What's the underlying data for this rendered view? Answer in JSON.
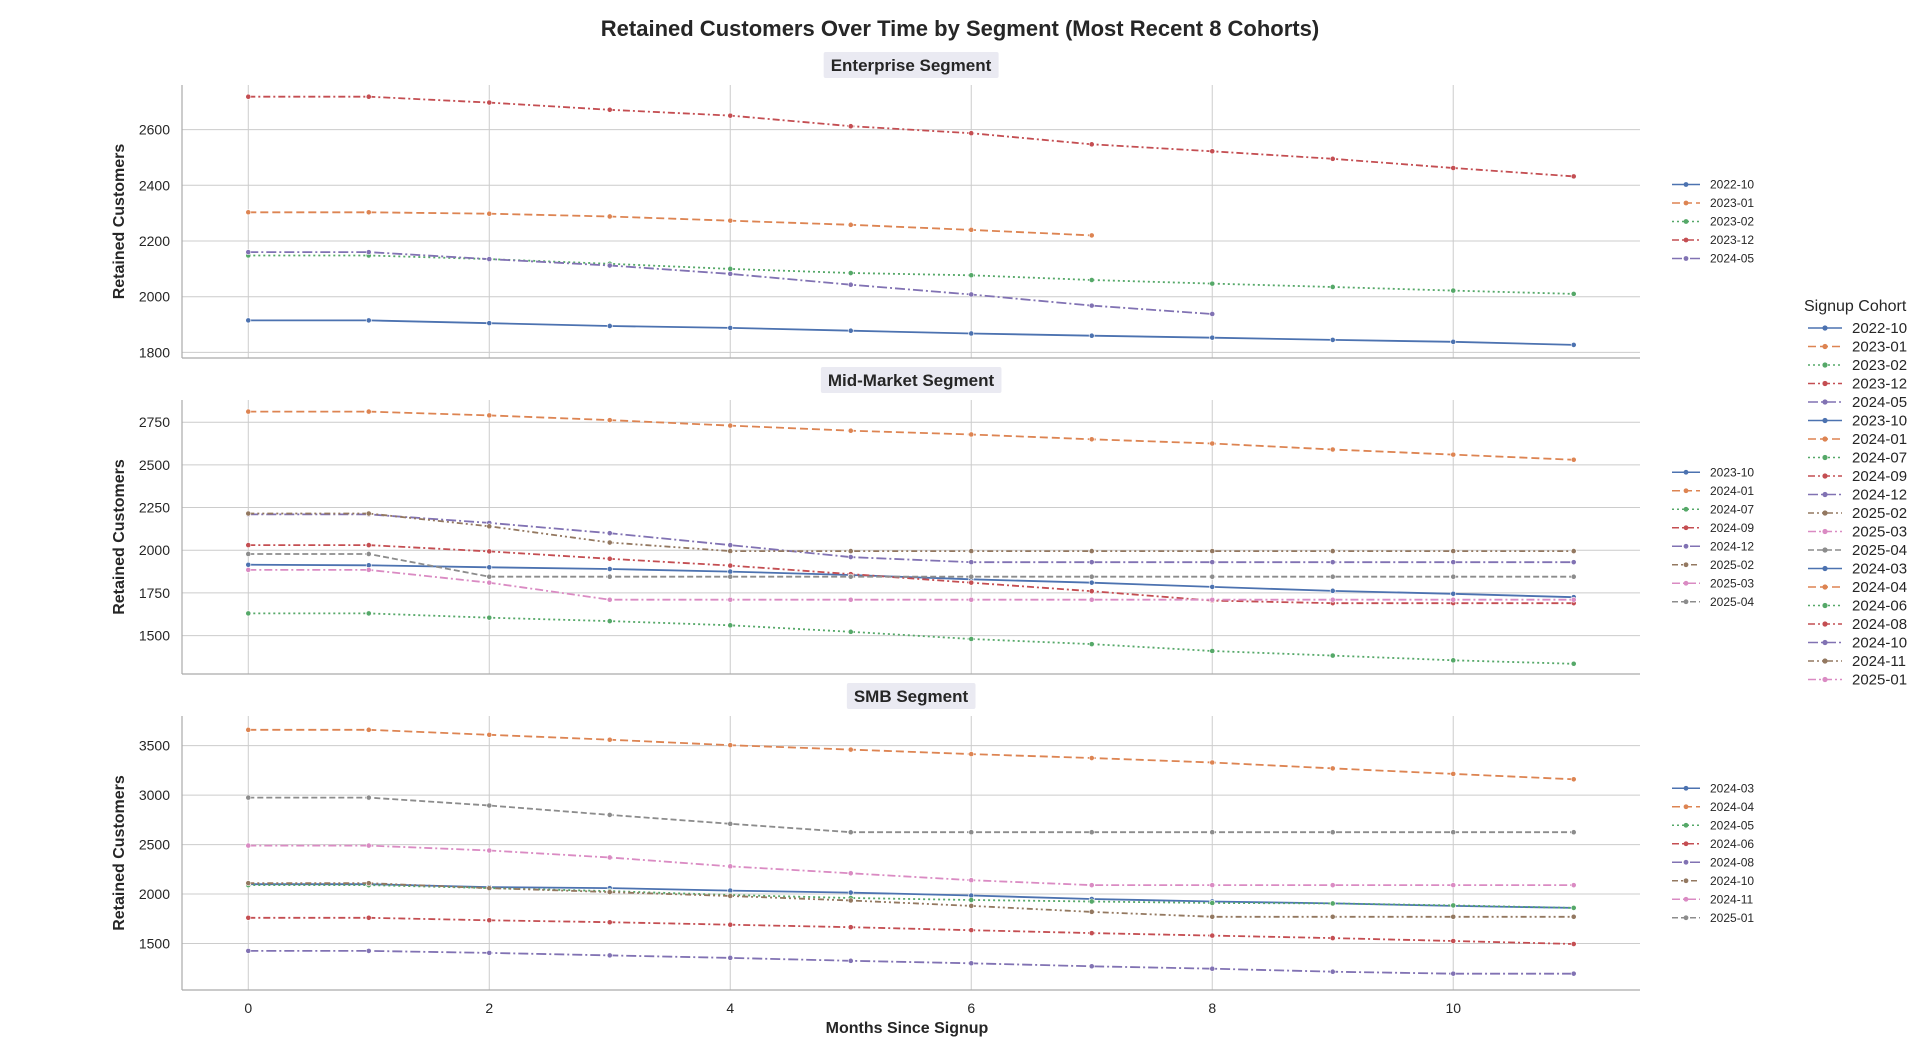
{
  "title": "Retained Customers Over Time by Segment (Most Recent 8 Cohorts)",
  "xlabel": "Months Since Signup",
  "legend_title": "Signup Cohort",
  "colors": [
    "#4c72b0",
    "#dd8452",
    "#55a868",
    "#c44e52",
    "#8172b3",
    "#937860",
    "#da8bc3",
    "#8c8c8c"
  ],
  "global_legend": [
    "2022-10",
    "2023-01",
    "2023-02",
    "2023-12",
    "2024-05",
    "2023-10",
    "2024-01",
    "2024-07",
    "2024-09",
    "2024-12",
    "2025-02",
    "2025-03",
    "2025-04",
    "2024-03",
    "2024-04",
    "2024-06",
    "2024-08",
    "2024-10",
    "2024-11",
    "2025-01"
  ],
  "chart_data": [
    {
      "type": "line",
      "title": "Enterprise Segment",
      "xlabel": "Months Since Signup",
      "ylabel": "Retained Customers",
      "xlim": [
        -0.55,
        11.55
      ],
      "ylim": [
        1780,
        2760
      ],
      "xticks": [
        0,
        2,
        4,
        6,
        8,
        10
      ],
      "yticks": [
        1800,
        2000,
        2200,
        2400,
        2600
      ],
      "grid": true,
      "legend_position": "right",
      "series": [
        {
          "name": "2022-10",
          "x": [
            0,
            1,
            2,
            3,
            4,
            5,
            6,
            7,
            8,
            9,
            10,
            11
          ],
          "values": [
            1915,
            1915,
            1905,
            1895,
            1888,
            1878,
            1868,
            1860,
            1853,
            1845,
            1838,
            1827
          ]
        },
        {
          "name": "2023-01",
          "x": [
            0,
            1,
            2,
            3,
            4,
            5,
            6,
            7
          ],
          "values": [
            2303,
            2303,
            2298,
            2288,
            2273,
            2258,
            2240,
            2220
          ]
        },
        {
          "name": "2023-02",
          "x": [
            0,
            1,
            2,
            3,
            4,
            5,
            6,
            7,
            8,
            9,
            10,
            11
          ],
          "values": [
            2148,
            2148,
            2135,
            2118,
            2100,
            2085,
            2077,
            2060,
            2047,
            2035,
            2022,
            2010
          ]
        },
        {
          "name": "2023-12",
          "x": [
            0,
            1,
            2,
            3,
            4,
            5,
            6,
            7,
            8,
            9,
            10,
            11
          ],
          "values": [
            2718,
            2718,
            2697,
            2671,
            2650,
            2612,
            2587,
            2547,
            2522,
            2495,
            2462,
            2432
          ]
        },
        {
          "name": "2024-05",
          "x": [
            0,
            1,
            2,
            3,
            4,
            5,
            6,
            7,
            8
          ],
          "values": [
            2160,
            2160,
            2135,
            2112,
            2082,
            2043,
            2008,
            1968,
            1938
          ]
        }
      ]
    },
    {
      "type": "line",
      "title": "Mid-Market Segment",
      "xlabel": "Months Since Signup",
      "ylabel": "Retained Customers",
      "xlim": [
        -0.55,
        11.55
      ],
      "ylim": [
        1275,
        2880
      ],
      "xticks": [
        0,
        2,
        4,
        6,
        8,
        10
      ],
      "yticks": [
        1500,
        1750,
        2000,
        2250,
        2500,
        2750
      ],
      "grid": true,
      "legend_position": "right",
      "series": [
        {
          "name": "2023-10",
          "x": [
            0,
            1,
            2,
            3,
            4,
            5,
            6,
            7,
            8,
            9,
            10,
            11
          ],
          "values": [
            1915,
            1912,
            1900,
            1890,
            1875,
            1855,
            1830,
            1810,
            1785,
            1762,
            1745,
            1725
          ]
        },
        {
          "name": "2024-01",
          "x": [
            0,
            1,
            2,
            3,
            4,
            5,
            6,
            7,
            8,
            9,
            10,
            11
          ],
          "values": [
            2812,
            2812,
            2790,
            2762,
            2730,
            2700,
            2678,
            2650,
            2625,
            2590,
            2560,
            2530
          ]
        },
        {
          "name": "2024-07",
          "x": [
            0,
            1,
            2,
            3,
            4,
            5,
            6,
            7,
            8,
            9,
            10,
            11
          ],
          "values": [
            1630,
            1630,
            1605,
            1585,
            1560,
            1522,
            1480,
            1450,
            1410,
            1383,
            1355,
            1335
          ]
        },
        {
          "name": "2024-09",
          "x": [
            0,
            1,
            2,
            3,
            4,
            5,
            6,
            7,
            8,
            9,
            10,
            11
          ],
          "values": [
            2030,
            2030,
            1993,
            1950,
            1910,
            1860,
            1810,
            1760,
            1705,
            1690,
            1690,
            1690
          ]
        },
        {
          "name": "2024-12",
          "x": [
            0,
            1,
            2,
            3,
            4,
            5,
            6,
            7,
            8,
            9,
            10,
            11
          ],
          "values": [
            2210,
            2210,
            2160,
            2100,
            2030,
            1960,
            1930,
            1930,
            1930,
            1930,
            1930,
            1930
          ]
        },
        {
          "name": "2025-02",
          "x": [
            0,
            1,
            2,
            3,
            4,
            5,
            6,
            7,
            8,
            9,
            10,
            11
          ],
          "values": [
            2215,
            2215,
            2140,
            2045,
            1995,
            1995,
            1995,
            1995,
            1995,
            1995,
            1995,
            1995
          ]
        },
        {
          "name": "2025-03",
          "x": [
            0,
            1,
            2,
            3,
            4,
            5,
            6,
            7,
            8,
            9,
            10,
            11
          ],
          "values": [
            1885,
            1885,
            1810,
            1710,
            1710,
            1710,
            1710,
            1710,
            1710,
            1710,
            1710,
            1710
          ]
        },
        {
          "name": "2025-04",
          "x": [
            0,
            1,
            2,
            3,
            4,
            5,
            6,
            7,
            8,
            9,
            10,
            11
          ],
          "values": [
            1978,
            1978,
            1845,
            1845,
            1845,
            1845,
            1845,
            1845,
            1845,
            1845,
            1845,
            1845
          ]
        }
      ]
    },
    {
      "type": "line",
      "title": "SMB Segment",
      "xlabel": "Months Since Signup",
      "ylabel": "Retained Customers",
      "xlim": [
        -0.55,
        11.55
      ],
      "ylim": [
        1030,
        3800
      ],
      "xticks": [
        0,
        2,
        4,
        6,
        8,
        10
      ],
      "yticks": [
        1500,
        2000,
        2500,
        3000,
        3500
      ],
      "grid": true,
      "legend_position": "right",
      "series": [
        {
          "name": "2024-03",
          "x": [
            0,
            1,
            2,
            3,
            4,
            5,
            6,
            7,
            8,
            9,
            10,
            11
          ],
          "values": [
            2100,
            2100,
            2070,
            2060,
            2035,
            2015,
            1985,
            1950,
            1925,
            1905,
            1880,
            1860
          ]
        },
        {
          "name": "2024-04",
          "x": [
            0,
            1,
            2,
            3,
            4,
            5,
            6,
            7,
            8,
            9,
            10,
            11
          ],
          "values": [
            3660,
            3660,
            3610,
            3560,
            3505,
            3460,
            3415,
            3375,
            3330,
            3270,
            3215,
            3160
          ]
        },
        {
          "name": "2024-05",
          "x": [
            0,
            1,
            2,
            3,
            4,
            5,
            6,
            7,
            8,
            9,
            10,
            11
          ],
          "values": [
            2090,
            2090,
            2060,
            2030,
            1990,
            1960,
            1940,
            1925,
            1910,
            1905,
            1885,
            1860
          ]
        },
        {
          "name": "2024-06",
          "x": [
            0,
            1,
            2,
            3,
            4,
            5,
            6,
            7,
            8,
            9,
            10,
            11
          ],
          "values": [
            1760,
            1760,
            1735,
            1715,
            1690,
            1665,
            1635,
            1605,
            1580,
            1555,
            1525,
            1495
          ]
        },
        {
          "name": "2024-08",
          "x": [
            0,
            1,
            2,
            3,
            4,
            5,
            6,
            7,
            8,
            9,
            10,
            11
          ],
          "values": [
            1425,
            1425,
            1405,
            1380,
            1355,
            1325,
            1300,
            1270,
            1245,
            1215,
            1195,
            1195
          ]
        },
        {
          "name": "2024-10",
          "x": [
            0,
            1,
            2,
            3,
            4,
            5,
            6,
            7,
            8,
            9,
            10,
            11
          ],
          "values": [
            2110,
            2110,
            2060,
            2020,
            1980,
            1935,
            1880,
            1820,
            1770,
            1770,
            1770,
            1770
          ]
        },
        {
          "name": "2024-11",
          "x": [
            0,
            1,
            2,
            3,
            4,
            5,
            6,
            7,
            8,
            9,
            10,
            11
          ],
          "values": [
            2490,
            2490,
            2440,
            2370,
            2280,
            2210,
            2140,
            2090,
            2090,
            2090,
            2090,
            2090
          ]
        },
        {
          "name": "2025-01",
          "x": [
            0,
            1,
            2,
            3,
            4,
            5,
            6,
            7,
            8,
            9,
            10,
            11
          ],
          "values": [
            2975,
            2975,
            2895,
            2800,
            2710,
            2625,
            2625,
            2625,
            2625,
            2625,
            2625,
            2625
          ]
        }
      ]
    }
  ]
}
